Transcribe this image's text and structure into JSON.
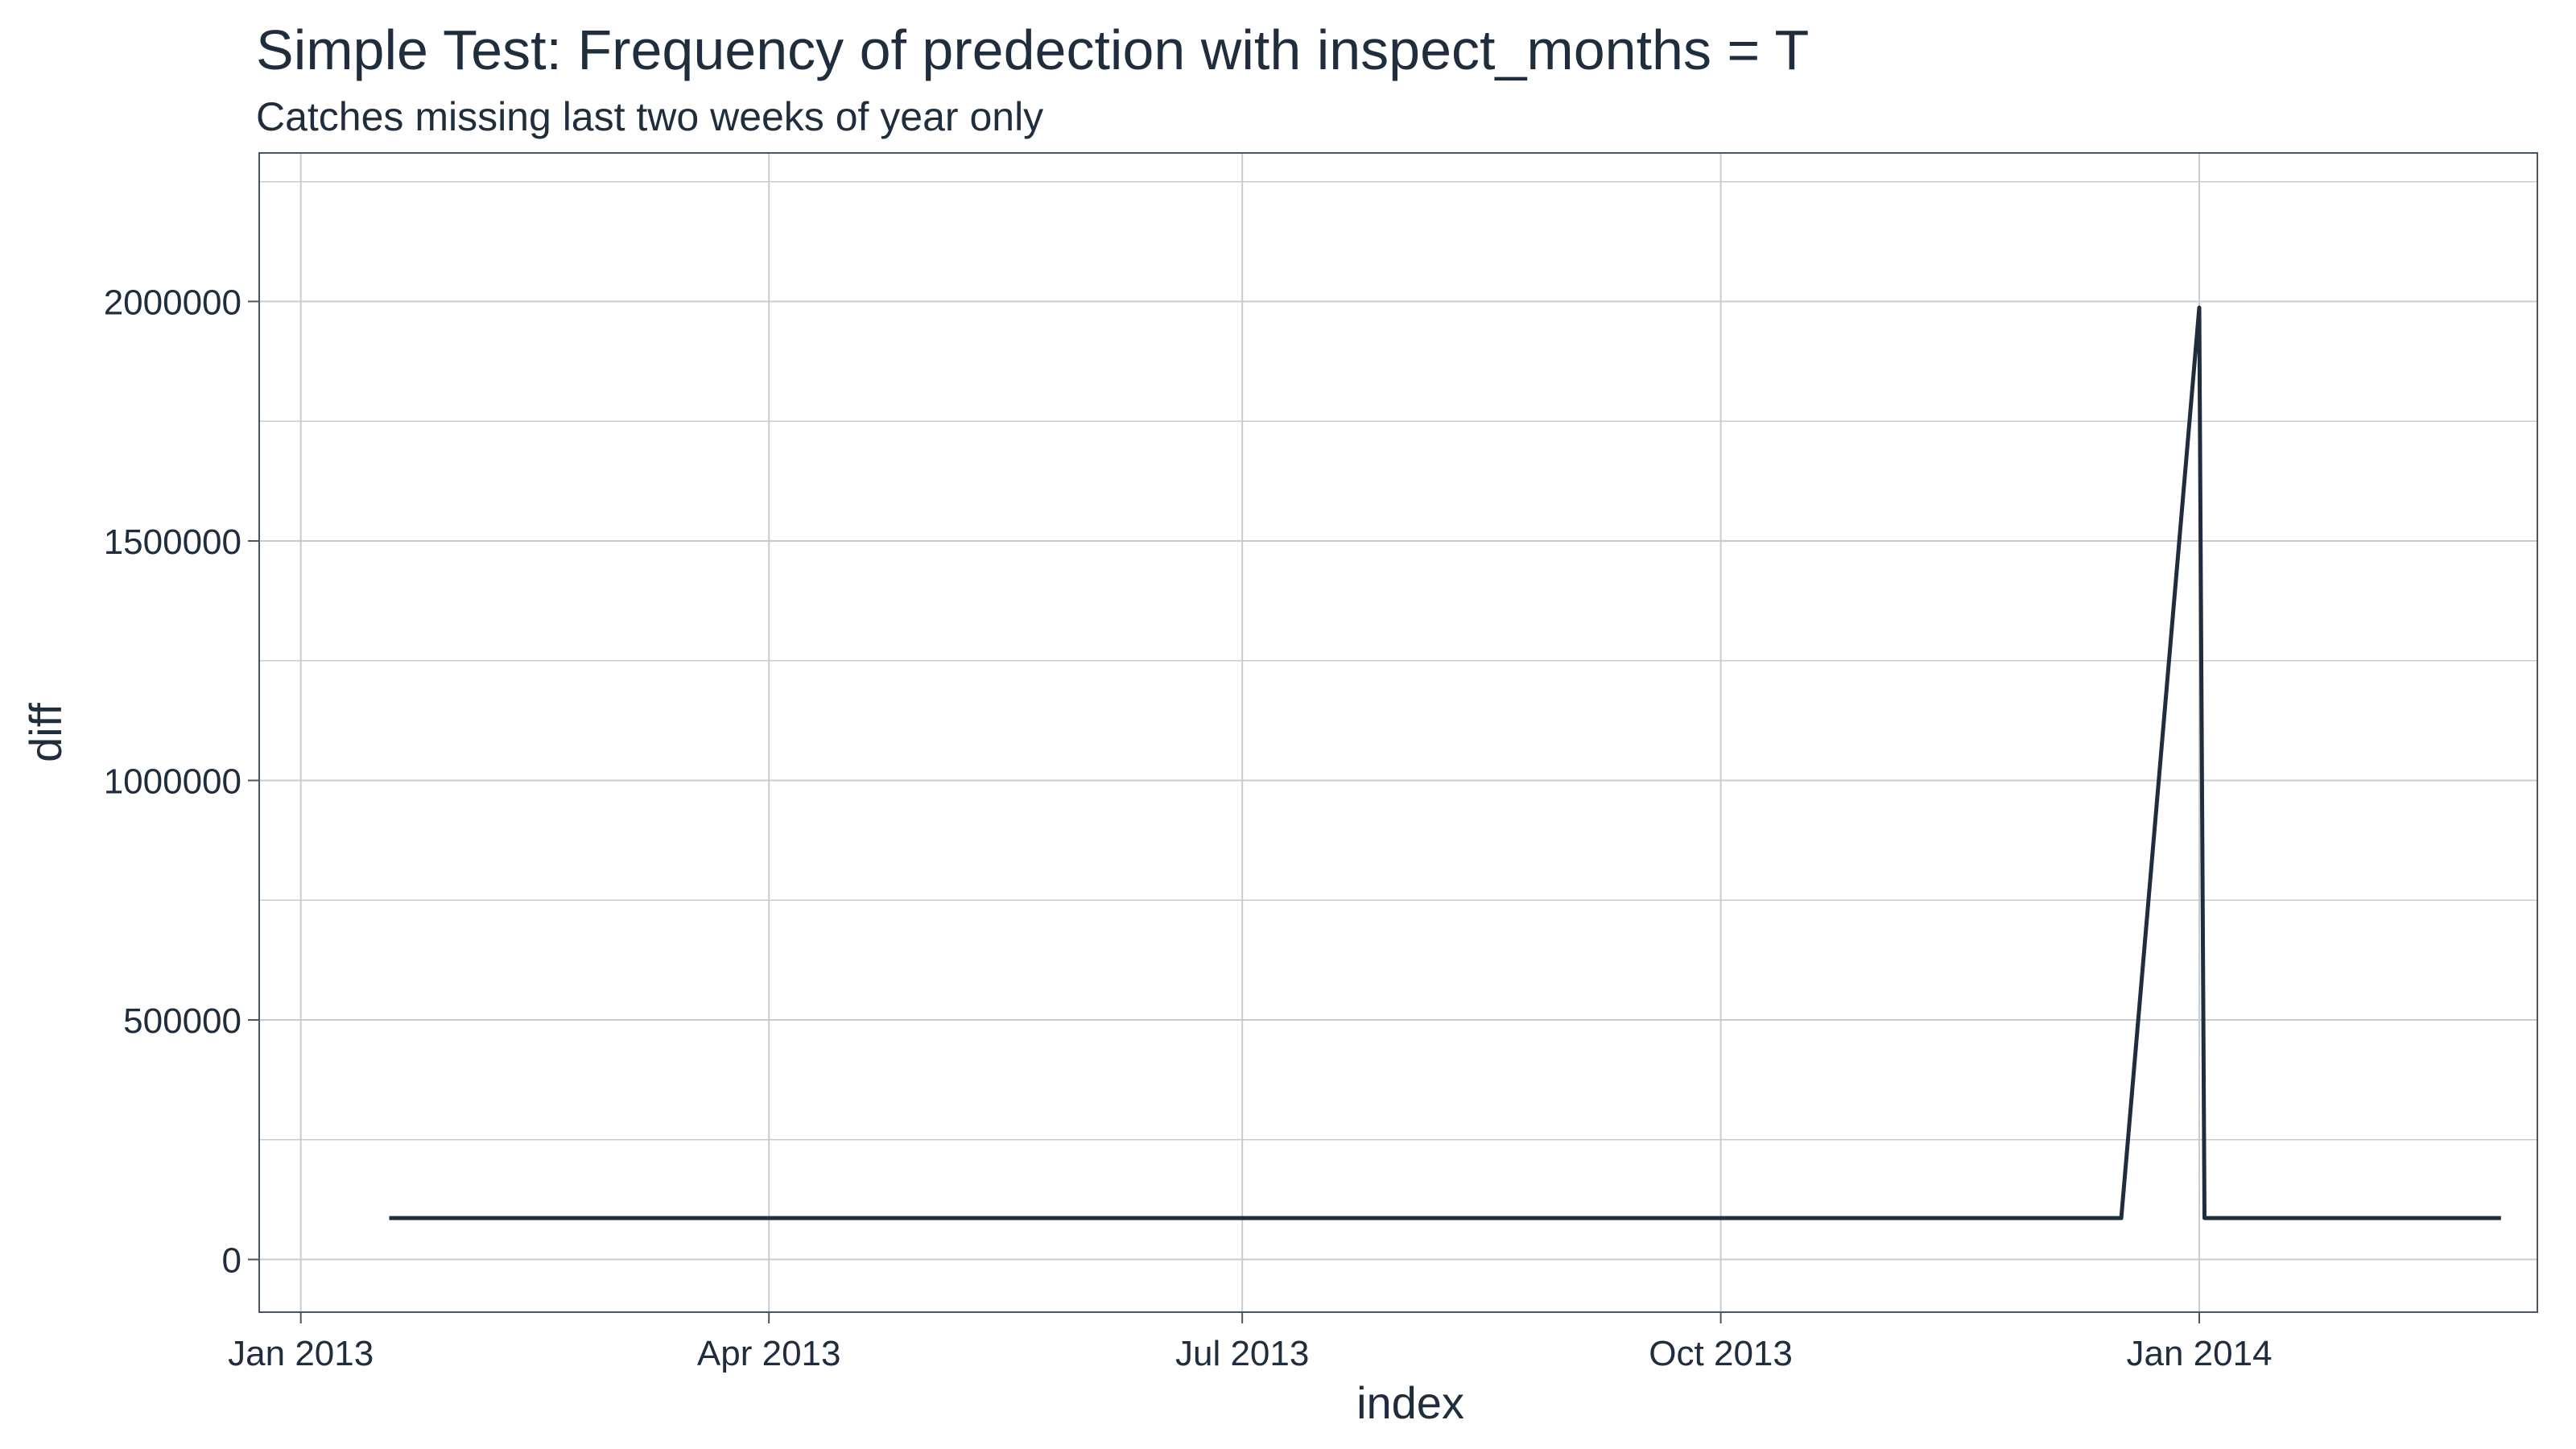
{
  "chart_data": {
    "type": "line",
    "title": "Simple Test: Frequency of predection with inspect_months = T",
    "subtitle": "Catches missing last two weeks of year only",
    "xlabel": "index",
    "ylabel": "diff",
    "x_axis": {
      "kind": "date",
      "range": [
        "2012-12-24",
        "2014-03-07"
      ],
      "ticks": [
        "2013-01-01",
        "2013-04-01",
        "2013-07-01",
        "2013-10-01",
        "2014-01-01"
      ],
      "tick_labels": [
        "Jan 2013",
        "Apr 2013",
        "Jul 2013",
        "Oct 2013",
        "Jan 2014"
      ]
    },
    "y_axis": {
      "range": [
        -110000,
        2310000
      ],
      "ticks": [
        0,
        500000,
        1000000,
        1500000,
        2000000
      ],
      "tick_labels": [
        "0",
        "500000",
        "1000000",
        "1500000",
        "2000000"
      ],
      "minor_ticks": [
        250000,
        750000,
        1250000,
        1750000,
        2250000
      ]
    },
    "grid": true,
    "series": [
      {
        "color": "#1f2d3d",
        "x": [
          "2013-01-18",
          "2013-12-17",
          "2014-01-01",
          "2014-01-02",
          "2014-02-28"
        ],
        "y": [
          86400,
          86400,
          1987200,
          86400,
          86400
        ]
      }
    ]
  }
}
